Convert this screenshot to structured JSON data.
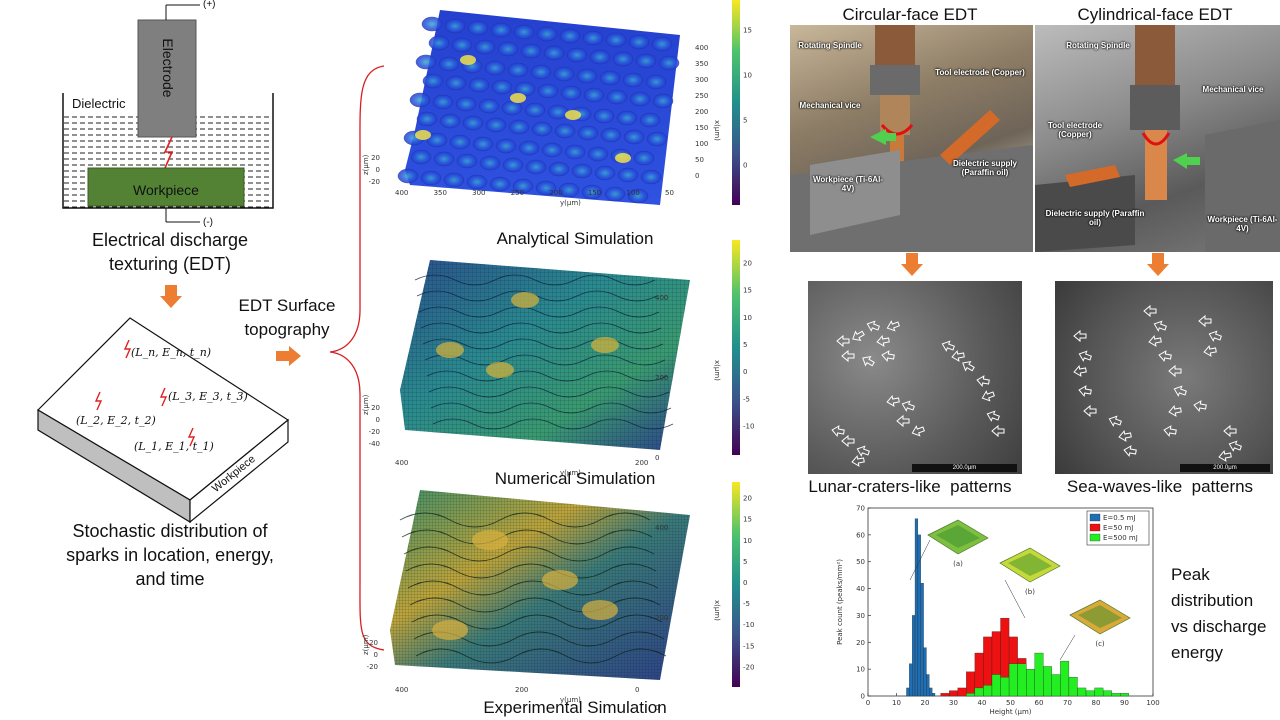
{
  "edt_diagram": {
    "positive": "(+)",
    "negative": "(-)",
    "electrode": "Electrode",
    "dielectric": "Dielectric",
    "workpiece": "Workpiece",
    "caption_line1": "Electrical discharge",
    "caption_line2": "texturing (EDT)"
  },
  "block_diagram": {
    "spark_n": "(L_n, E_n, t_n)",
    "spark_3": "(L_3, E_3, t_3)",
    "spark_2": "(L_2, E_2, t_2)",
    "spark_1": "(L_1, E_1, t_1)",
    "side_label": "Workpiece",
    "caption_line1": "Stochastic distribution of",
    "caption_line2": "sparks in location, energy,",
    "caption_line3": "and time"
  },
  "middle": {
    "label_line1": "EDT Surface",
    "label_line2": "topography"
  },
  "surfaces": {
    "analytical": {
      "caption": "Analytical Simulation",
      "colorbar_ticks": [
        "15",
        "10",
        "5",
        "0"
      ],
      "x_ticks": [
        "400",
        "350",
        "300",
        "250",
        "200",
        "150",
        "100",
        "50"
      ],
      "y_ticks": [
        "400",
        "350",
        "300",
        "250",
        "200",
        "150",
        "100",
        "50",
        "0"
      ],
      "z_ticks": [
        "20",
        "0",
        "-20"
      ],
      "xlabel": "x(μm)",
      "ylabel": "y(μm)",
      "zlabel": "z(μm)"
    },
    "numerical": {
      "caption": "Numerical Simulation",
      "colorbar_ticks": [
        "20",
        "15",
        "10",
        "5",
        "0",
        "-5",
        "-10"
      ],
      "x_ticks": [
        "400",
        "200"
      ],
      "y_ticks": [
        "400",
        "200",
        "0"
      ],
      "z_ticks": [
        "20",
        "0",
        "-20",
        "-40"
      ],
      "xlabel": "x(μm)",
      "ylabel": "y(μm)",
      "zlabel": "z(μm)"
    },
    "experimental": {
      "caption": "Experimental Simulation",
      "colorbar_ticks": [
        "20",
        "15",
        "10",
        "5",
        "0",
        "-5",
        "-10",
        "-15",
        "-20"
      ],
      "x_ticks": [
        "400",
        "200",
        "0"
      ],
      "y_ticks": [
        "400",
        "200",
        "0"
      ],
      "z_ticks": [
        "20",
        "0",
        "-20"
      ],
      "xlabel": "x(μm)",
      "ylabel": "y(μm)",
      "zlabel": "z(μm)"
    }
  },
  "photos": {
    "circular": {
      "title": "Circular-face EDT",
      "labels": [
        "Rotating Spindle",
        "Tool electrode (Copper)",
        "Mechanical vice",
        "Dielectric supply (Paraffin oil)",
        "Workpiece (Ti-6Al-4V)"
      ]
    },
    "cylindrical": {
      "title": "Cylindrical-face EDT",
      "labels": [
        "Rotating Spindle",
        "Mechanical vice",
        "Tool electrode (Copper)",
        "Dielectric supply (Paraffin oil)",
        "Workpiece (Ti-6Al-4V)"
      ]
    }
  },
  "sem": {
    "left_caption": "Lunar-craters-like  patterns",
    "right_caption": "Sea-waves-like  patterns",
    "scale": "200.0μm"
  },
  "histogram_caption": {
    "line1": "Peak",
    "line2": "distribution",
    "line3": "vs discharge",
    "line4": "energy"
  },
  "chart_data": {
    "type": "bar",
    "xlabel": "Height (μm)",
    "ylabel": "Peak count (peaks/mm²)",
    "xlim": [
      0,
      100
    ],
    "ylim": [
      0,
      70
    ],
    "x_ticks": [
      0,
      10,
      20,
      30,
      40,
      50,
      60,
      70,
      80,
      90,
      100
    ],
    "y_ticks": [
      0,
      10,
      20,
      30,
      40,
      50,
      60,
      70
    ],
    "legend_position": "top-right",
    "inset_labels": [
      "(a)",
      "(b)",
      "(c)"
    ],
    "series": [
      {
        "name": "E=0.5 mJ",
        "color": "#1f6fb4",
        "bin_width": 1,
        "x": [
          14,
          15,
          16,
          17,
          18,
          19,
          20,
          21,
          22,
          23
        ],
        "values": [
          3,
          12,
          30,
          66,
          60,
          42,
          18,
          8,
          3,
          1
        ]
      },
      {
        "name": "E=50 mJ",
        "color": "#ee1111",
        "bin_width": 3,
        "x": [
          27,
          30,
          33,
          36,
          39,
          42,
          45,
          48,
          51,
          54,
          57,
          60,
          63
        ],
        "values": [
          1,
          2,
          3,
          9,
          16,
          22,
          24,
          29,
          22,
          14,
          9,
          4,
          1
        ]
      },
      {
        "name": "E=500 mJ",
        "color": "#22ee22",
        "bin_width": 3,
        "x": [
          36,
          39,
          42,
          45,
          48,
          51,
          54,
          57,
          60,
          63,
          66,
          69,
          72,
          75,
          78,
          81,
          84,
          87,
          90
        ],
        "values": [
          1,
          3,
          4,
          8,
          7,
          12,
          12,
          10,
          16,
          11,
          8,
          13,
          7,
          3,
          2,
          3,
          2,
          1,
          1
        ]
      }
    ]
  }
}
